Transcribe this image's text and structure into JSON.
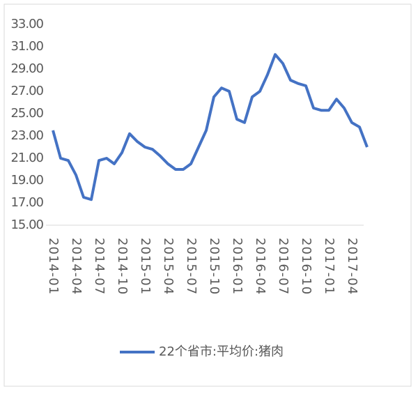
{
  "chart_data": {
    "type": "line",
    "categories": [
      "2014-01",
      null,
      null,
      "2014-04",
      null,
      null,
      "2014-07",
      null,
      null,
      "2014-10",
      null,
      null,
      "2015-01",
      null,
      null,
      "2015-04",
      null,
      null,
      "2015-07",
      null,
      null,
      "2015-10",
      null,
      null,
      "2016-01",
      null,
      null,
      "2016-04",
      null,
      null,
      "2016-07",
      null,
      null,
      "2016-10",
      null,
      null,
      "2017-01",
      null,
      null,
      "2017-04",
      null,
      null
    ],
    "series": [
      {
        "name": "22个省市:平均价:猪肉",
        "color": "#4472c4",
        "values": [
          23.5,
          21,
          20.8,
          19.5,
          17.5,
          17.3,
          20.8,
          21,
          20.5,
          21.5,
          23.2,
          22.5,
          22,
          21.8,
          21.2,
          20.5,
          20,
          20,
          20.5,
          22,
          23.5,
          26.5,
          27.3,
          27,
          24.5,
          24.2,
          26.5,
          27,
          28.5,
          30.3,
          29.5,
          28,
          27.7,
          27.5,
          25.5,
          25.3,
          25.3,
          26.3,
          25.5,
          24.2,
          23.8,
          22
        ]
      }
    ],
    "ylim": [
      15,
      33
    ],
    "yticks": [
      {
        "value": 15,
        "label": "15.00"
      },
      {
        "value": 17,
        "label": "17.00"
      },
      {
        "value": 19,
        "label": "19.00"
      },
      {
        "value": 21,
        "label": "21.00"
      },
      {
        "value": 23,
        "label": "23.00"
      },
      {
        "value": 25,
        "label": "25.00"
      },
      {
        "value": 27,
        "label": "27.00"
      },
      {
        "value": 29,
        "label": "29.00"
      },
      {
        "value": 31,
        "label": "31.00"
      },
      {
        "value": 33,
        "label": "33.00"
      }
    ],
    "legend": "bottom"
  }
}
